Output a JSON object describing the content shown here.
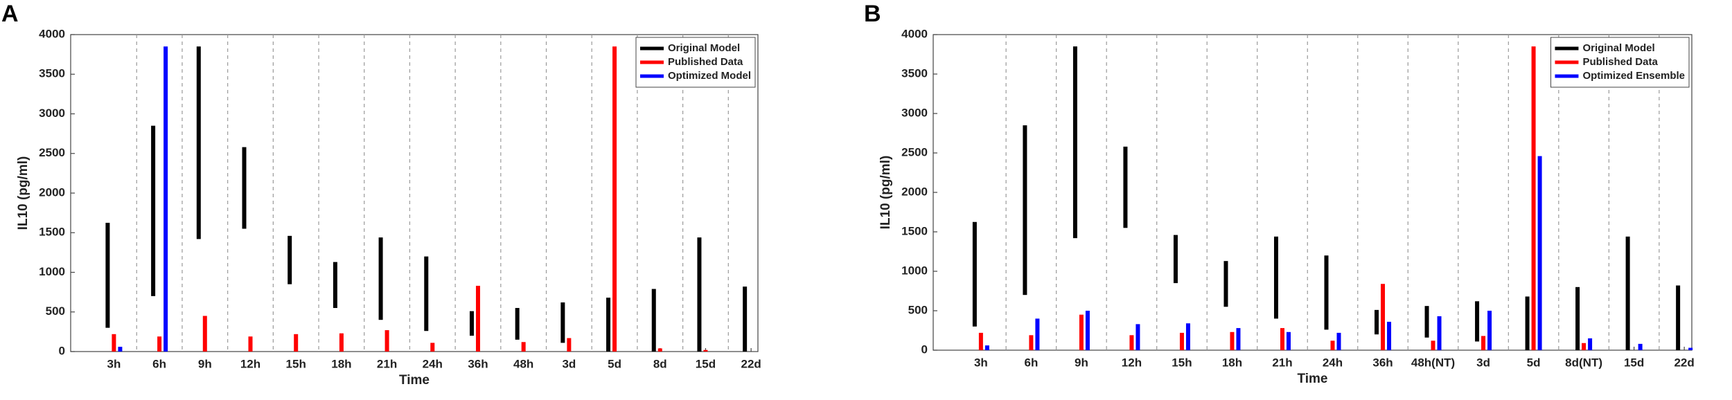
{
  "chart_data": [
    {
      "type": "range_bar",
      "panel_label": "A",
      "ylabel": "IL10 (pg/ml)",
      "xlabel": "Time",
      "categories": [
        "3h",
        "6h",
        "9h",
        "12h",
        "15h",
        "18h",
        "21h",
        "24h",
        "36h",
        "48h",
        "3d",
        "5d",
        "8d",
        "15d",
        "22d"
      ],
      "series": [
        {
          "name": "Original Model",
          "color": "#000000",
          "values": [
            [
              300,
              1625
            ],
            [
              700,
              2850
            ],
            [
              1420,
              3850
            ],
            [
              1550,
              2580
            ],
            [
              850,
              1460
            ],
            [
              550,
              1130
            ],
            [
              400,
              1440
            ],
            [
              260,
              1200
            ],
            [
              200,
              510
            ],
            [
              150,
              550
            ],
            [
              110,
              620
            ],
            [
              0,
              680
            ],
            [
              0,
              790
            ],
            [
              0,
              1440
            ],
            [
              0,
              820
            ]
          ]
        },
        {
          "name": "Published Data",
          "color": "#ff0000",
          "values": [
            220,
            190,
            450,
            190,
            220,
            230,
            270,
            110,
            830,
            120,
            170,
            3850,
            40,
            20,
            null
          ]
        },
        {
          "name": "Optimized Model",
          "color": "#0000ff",
          "values": [
            60,
            3850,
            null,
            null,
            null,
            null,
            null,
            null,
            null,
            null,
            null,
            null,
            null,
            null,
            null
          ]
        }
      ],
      "ylim": [
        0,
        4000
      ],
      "yticks": [
        0,
        500,
        1000,
        1500,
        2000,
        2500,
        3000,
        3500,
        4000
      ],
      "grid": true,
      "legend": "upper right"
    },
    {
      "type": "range_bar",
      "panel_label": "B",
      "ylabel": "IL10 (pg/ml)",
      "xlabel": "Time",
      "categories": [
        "3h",
        "6h",
        "9h",
        "12h",
        "15h",
        "18h",
        "21h",
        "24h",
        "36h",
        "48h(NT)",
        "3d",
        "5d",
        "8d(NT)",
        "15d",
        "22d"
      ],
      "series": [
        {
          "name": "Original Model",
          "color": "#000000",
          "values": [
            [
              300,
              1625
            ],
            [
              700,
              2850
            ],
            [
              1420,
              3850
            ],
            [
              1550,
              2580
            ],
            [
              850,
              1460
            ],
            [
              550,
              1130
            ],
            [
              400,
              1440
            ],
            [
              260,
              1200
            ],
            [
              200,
              510
            ],
            [
              160,
              560
            ],
            [
              110,
              620
            ],
            [
              0,
              680
            ],
            [
              0,
              800
            ],
            [
              0,
              1440
            ],
            [
              0,
              820
            ]
          ]
        },
        {
          "name": "Published Data",
          "color": "#ff0000",
          "values": [
            220,
            190,
            450,
            190,
            220,
            230,
            280,
            120,
            840,
            120,
            180,
            3850,
            90,
            null,
            null
          ]
        },
        {
          "name": "Optimized Ensemble",
          "color": "#0000ff",
          "values": [
            60,
            400,
            500,
            330,
            340,
            280,
            230,
            220,
            360,
            430,
            500,
            2460,
            150,
            80,
            30
          ]
        }
      ],
      "ylim": [
        0,
        4000
      ],
      "yticks": [
        0,
        500,
        1000,
        1500,
        2000,
        2500,
        3000,
        3500,
        4000
      ],
      "grid": true,
      "legend": "upper right"
    }
  ]
}
